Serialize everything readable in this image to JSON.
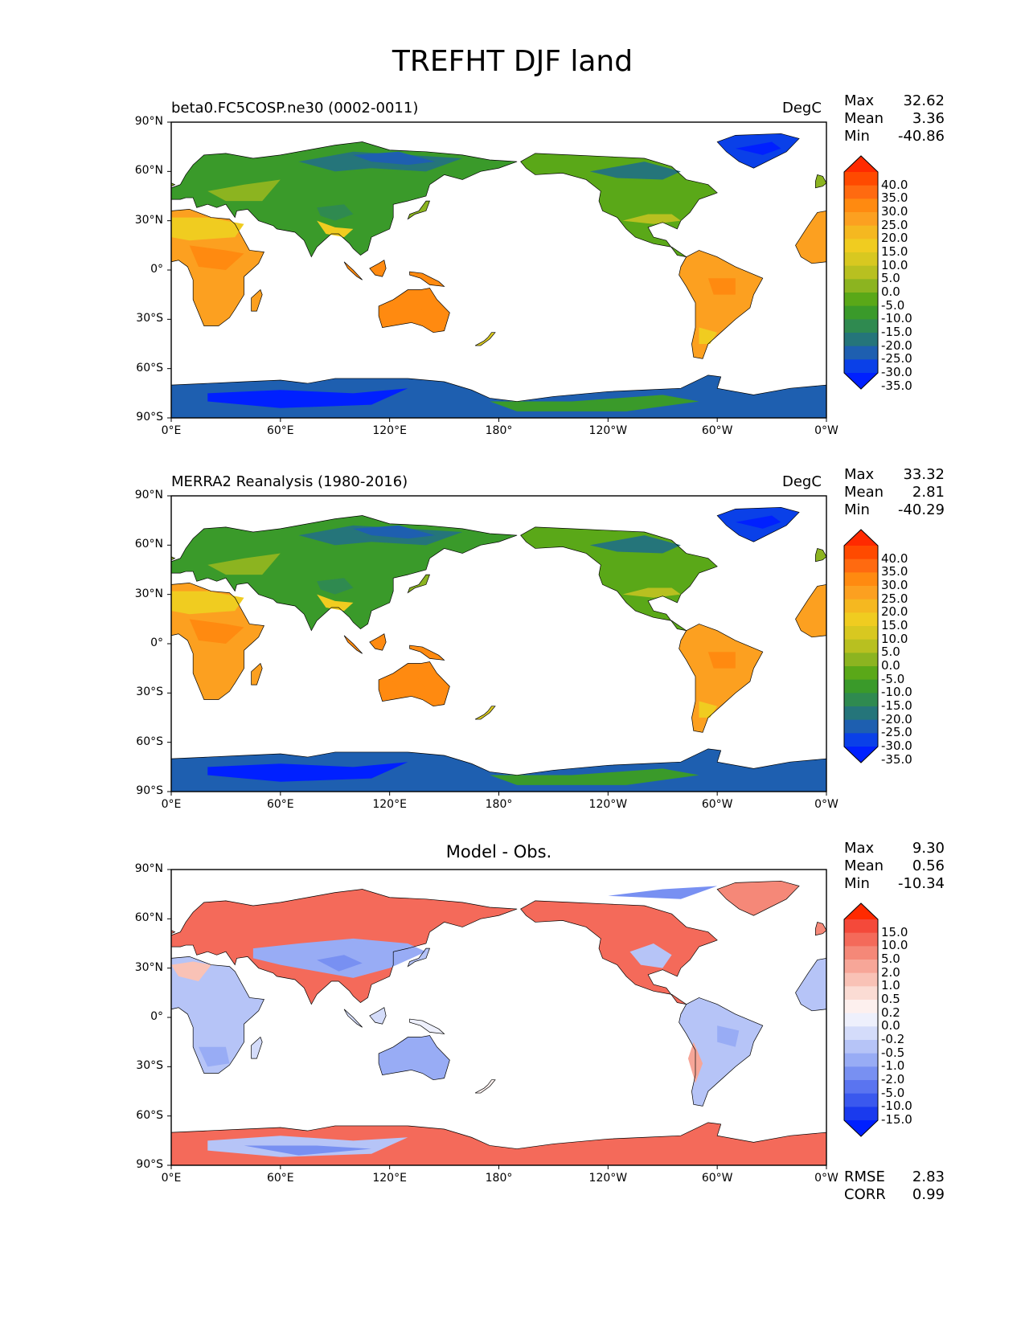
{
  "figure": {
    "title": "TREFHT DJF land"
  },
  "axes": {
    "lat_labels": [
      "90°N",
      "60°N",
      "30°N",
      "0°",
      "30°S",
      "60°S",
      "90°S"
    ],
    "lon_labels": [
      "0°E",
      "60°E",
      "120°E",
      "180°",
      "120°W",
      "60°W",
      "0°W"
    ]
  },
  "panels": [
    {
      "title": "beta0.FC5COSP.ne30 (0002-0011)",
      "units": "DegC",
      "center_title": "",
      "stats": {
        "max_label": "Max",
        "max": "32.62",
        "mean_label": "Mean",
        "mean": "3.36",
        "min_label": "Min",
        "min": "-40.86"
      },
      "colorbar": {
        "labels": [
          "40.0",
          "35.0",
          "30.0",
          "25.0",
          "20.0",
          "15.0",
          "10.0",
          "5.0",
          "0.0",
          "-5.0",
          "-10.0",
          "-15.0",
          "-20.0",
          "-25.0",
          "-30.0",
          "-35.0"
        ],
        "colors": [
          "#ff2a00",
          "#ff4a00",
          "#ff6a10",
          "#ff8a10",
          "#fca020",
          "#f5b820",
          "#f0cc20",
          "#d8c820",
          "#b8c020",
          "#8cb420",
          "#5aa818",
          "#3a9a2a",
          "#2f8a50",
          "#25757a",
          "#1e5fb0",
          "#0a40e8",
          "#0020ff"
        ]
      },
      "scheme": "temp"
    },
    {
      "title": "MERRA2 Reanalysis (1980-2016)",
      "units": "DegC",
      "center_title": "",
      "stats": {
        "max_label": "Max",
        "max": "33.32",
        "mean_label": "Mean",
        "mean": "2.81",
        "min_label": "Min",
        "min": "-40.29"
      },
      "colorbar": {
        "labels": [
          "40.0",
          "35.0",
          "30.0",
          "25.0",
          "20.0",
          "15.0",
          "10.0",
          "5.0",
          "0.0",
          "-5.0",
          "-10.0",
          "-15.0",
          "-20.0",
          "-25.0",
          "-30.0",
          "-35.0"
        ],
        "colors": [
          "#ff2a00",
          "#ff4a00",
          "#ff6a10",
          "#ff8a10",
          "#fca020",
          "#f5b820",
          "#f0cc20",
          "#d8c820",
          "#b8c020",
          "#8cb420",
          "#5aa818",
          "#3a9a2a",
          "#2f8a50",
          "#25757a",
          "#1e5fb0",
          "#0a40e8",
          "#0020ff"
        ]
      },
      "scheme": "temp"
    },
    {
      "title": "",
      "units": "",
      "center_title": "Model - Obs.",
      "stats": {
        "max_label": "Max",
        "max": "9.30",
        "mean_label": "Mean",
        "mean": "0.56",
        "min_label": "Min",
        "min": "-10.34"
      },
      "colorbar": {
        "labels": [
          "15.0",
          "10.0",
          "5.0",
          "2.0",
          "1.0",
          "0.5",
          "0.2",
          "0.0",
          "-0.2",
          "-0.5",
          "-1.0",
          "-2.0",
          "-5.0",
          "-10.0",
          "-15.0"
        ],
        "colors": [
          "#ff2a00",
          "#f4493a",
          "#f46a5a",
          "#f58878",
          "#f7a698",
          "#f9c2b6",
          "#fbdcd4",
          "#fdf0ee",
          "#eef0fc",
          "#d4dcfa",
          "#b6c4f7",
          "#98acf5",
          "#7890f2",
          "#5a74f0",
          "#3a58ee",
          "#1a3aee",
          "#0020ff"
        ]
      },
      "scheme": "diff",
      "extra_stats": {
        "rmse_label": "RMSE",
        "rmse": "2.83",
        "corr_label": "CORR",
        "corr": "0.99"
      }
    }
  ]
}
